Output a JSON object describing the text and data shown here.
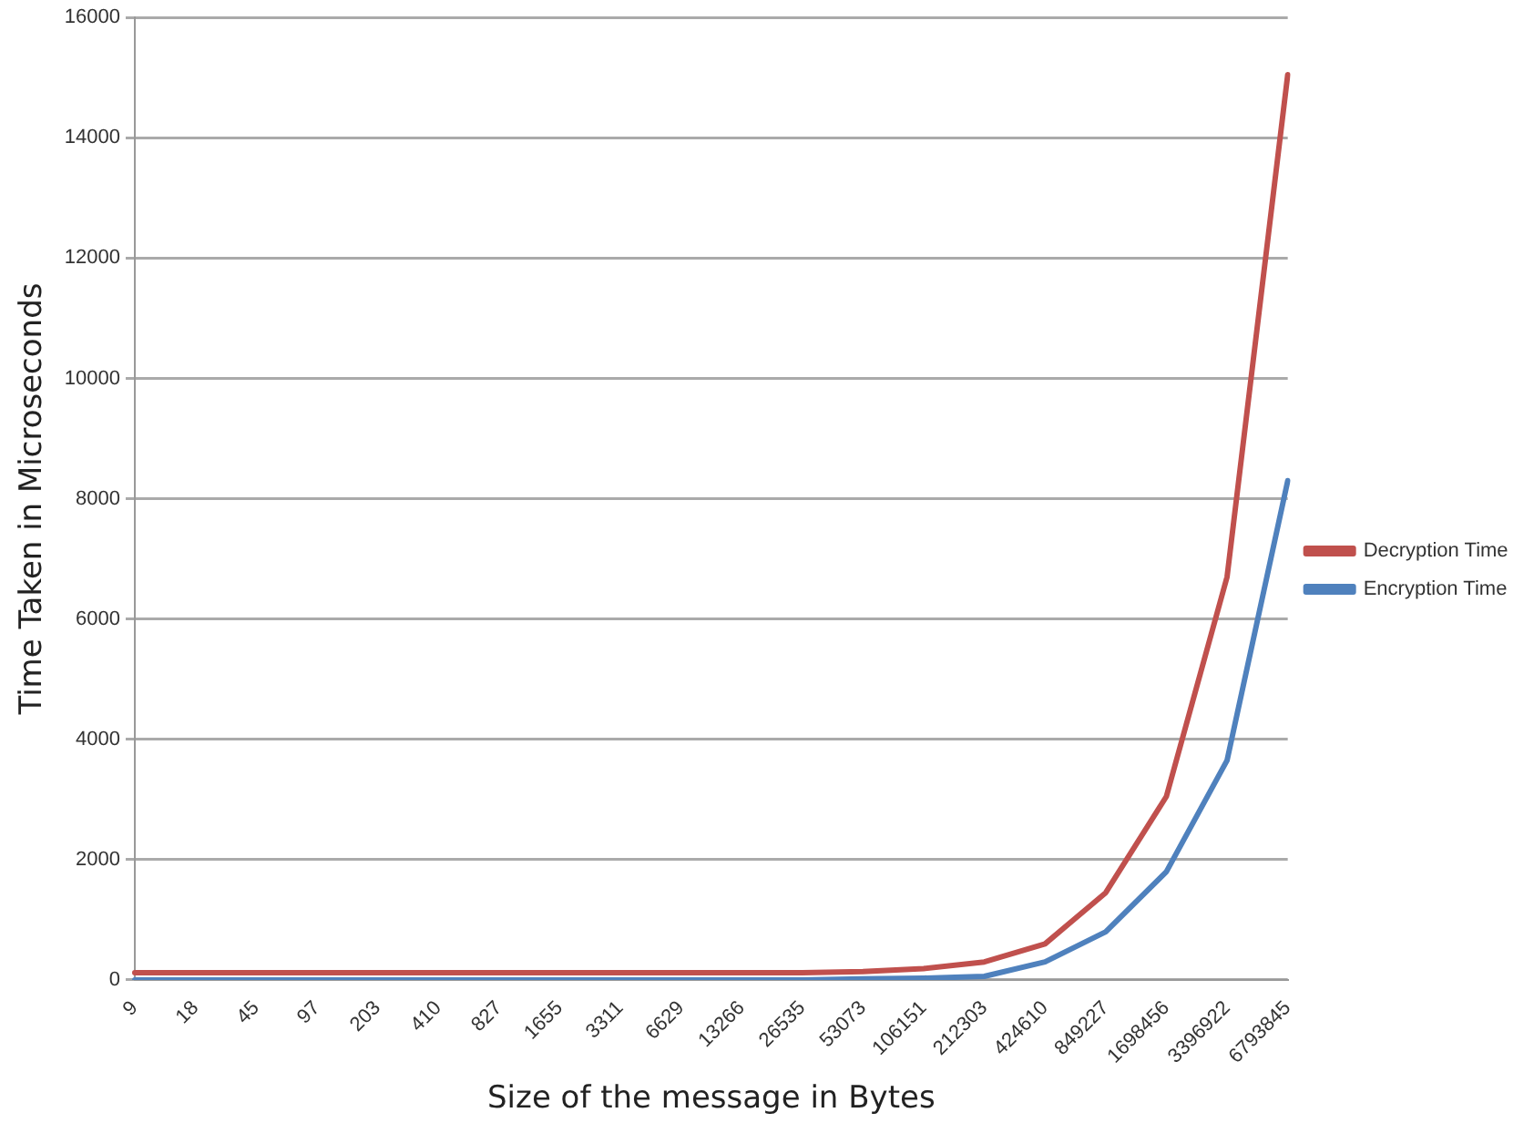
{
  "chart_data": {
    "type": "line",
    "xlabel": "Size of the message in Bytes",
    "ylabel": "Time Taken in Microseconds",
    "categories": [
      "9",
      "18",
      "45",
      "97",
      "203",
      "410",
      "827",
      "1655",
      "3311",
      "6629",
      "13266",
      "26535",
      "53073",
      "106151",
      "212303",
      "424610",
      "849227",
      "1698456",
      "3396922",
      "6793845"
    ],
    "series": [
      {
        "name": "Decryption Time",
        "color": "#c0504d",
        "values": [
          120,
          120,
          120,
          120,
          120,
          120,
          120,
          120,
          120,
          120,
          120,
          120,
          140,
          190,
          300,
          600,
          1450,
          3050,
          6700,
          15050
        ]
      },
      {
        "name": "Encryption Time",
        "color": "#4f81bd",
        "values": [
          0,
          0,
          0,
          0,
          0,
          0,
          0,
          0,
          0,
          0,
          0,
          0,
          20,
          30,
          60,
          300,
          800,
          1800,
          3650,
          8300
        ]
      }
    ],
    "ylim": [
      0,
      16000
    ],
    "yticks": [
      0,
      2000,
      4000,
      6000,
      8000,
      10000,
      12000,
      14000,
      16000
    ],
    "grid": "y",
    "legend": "right",
    "marker": "none",
    "line_style": "solid"
  }
}
